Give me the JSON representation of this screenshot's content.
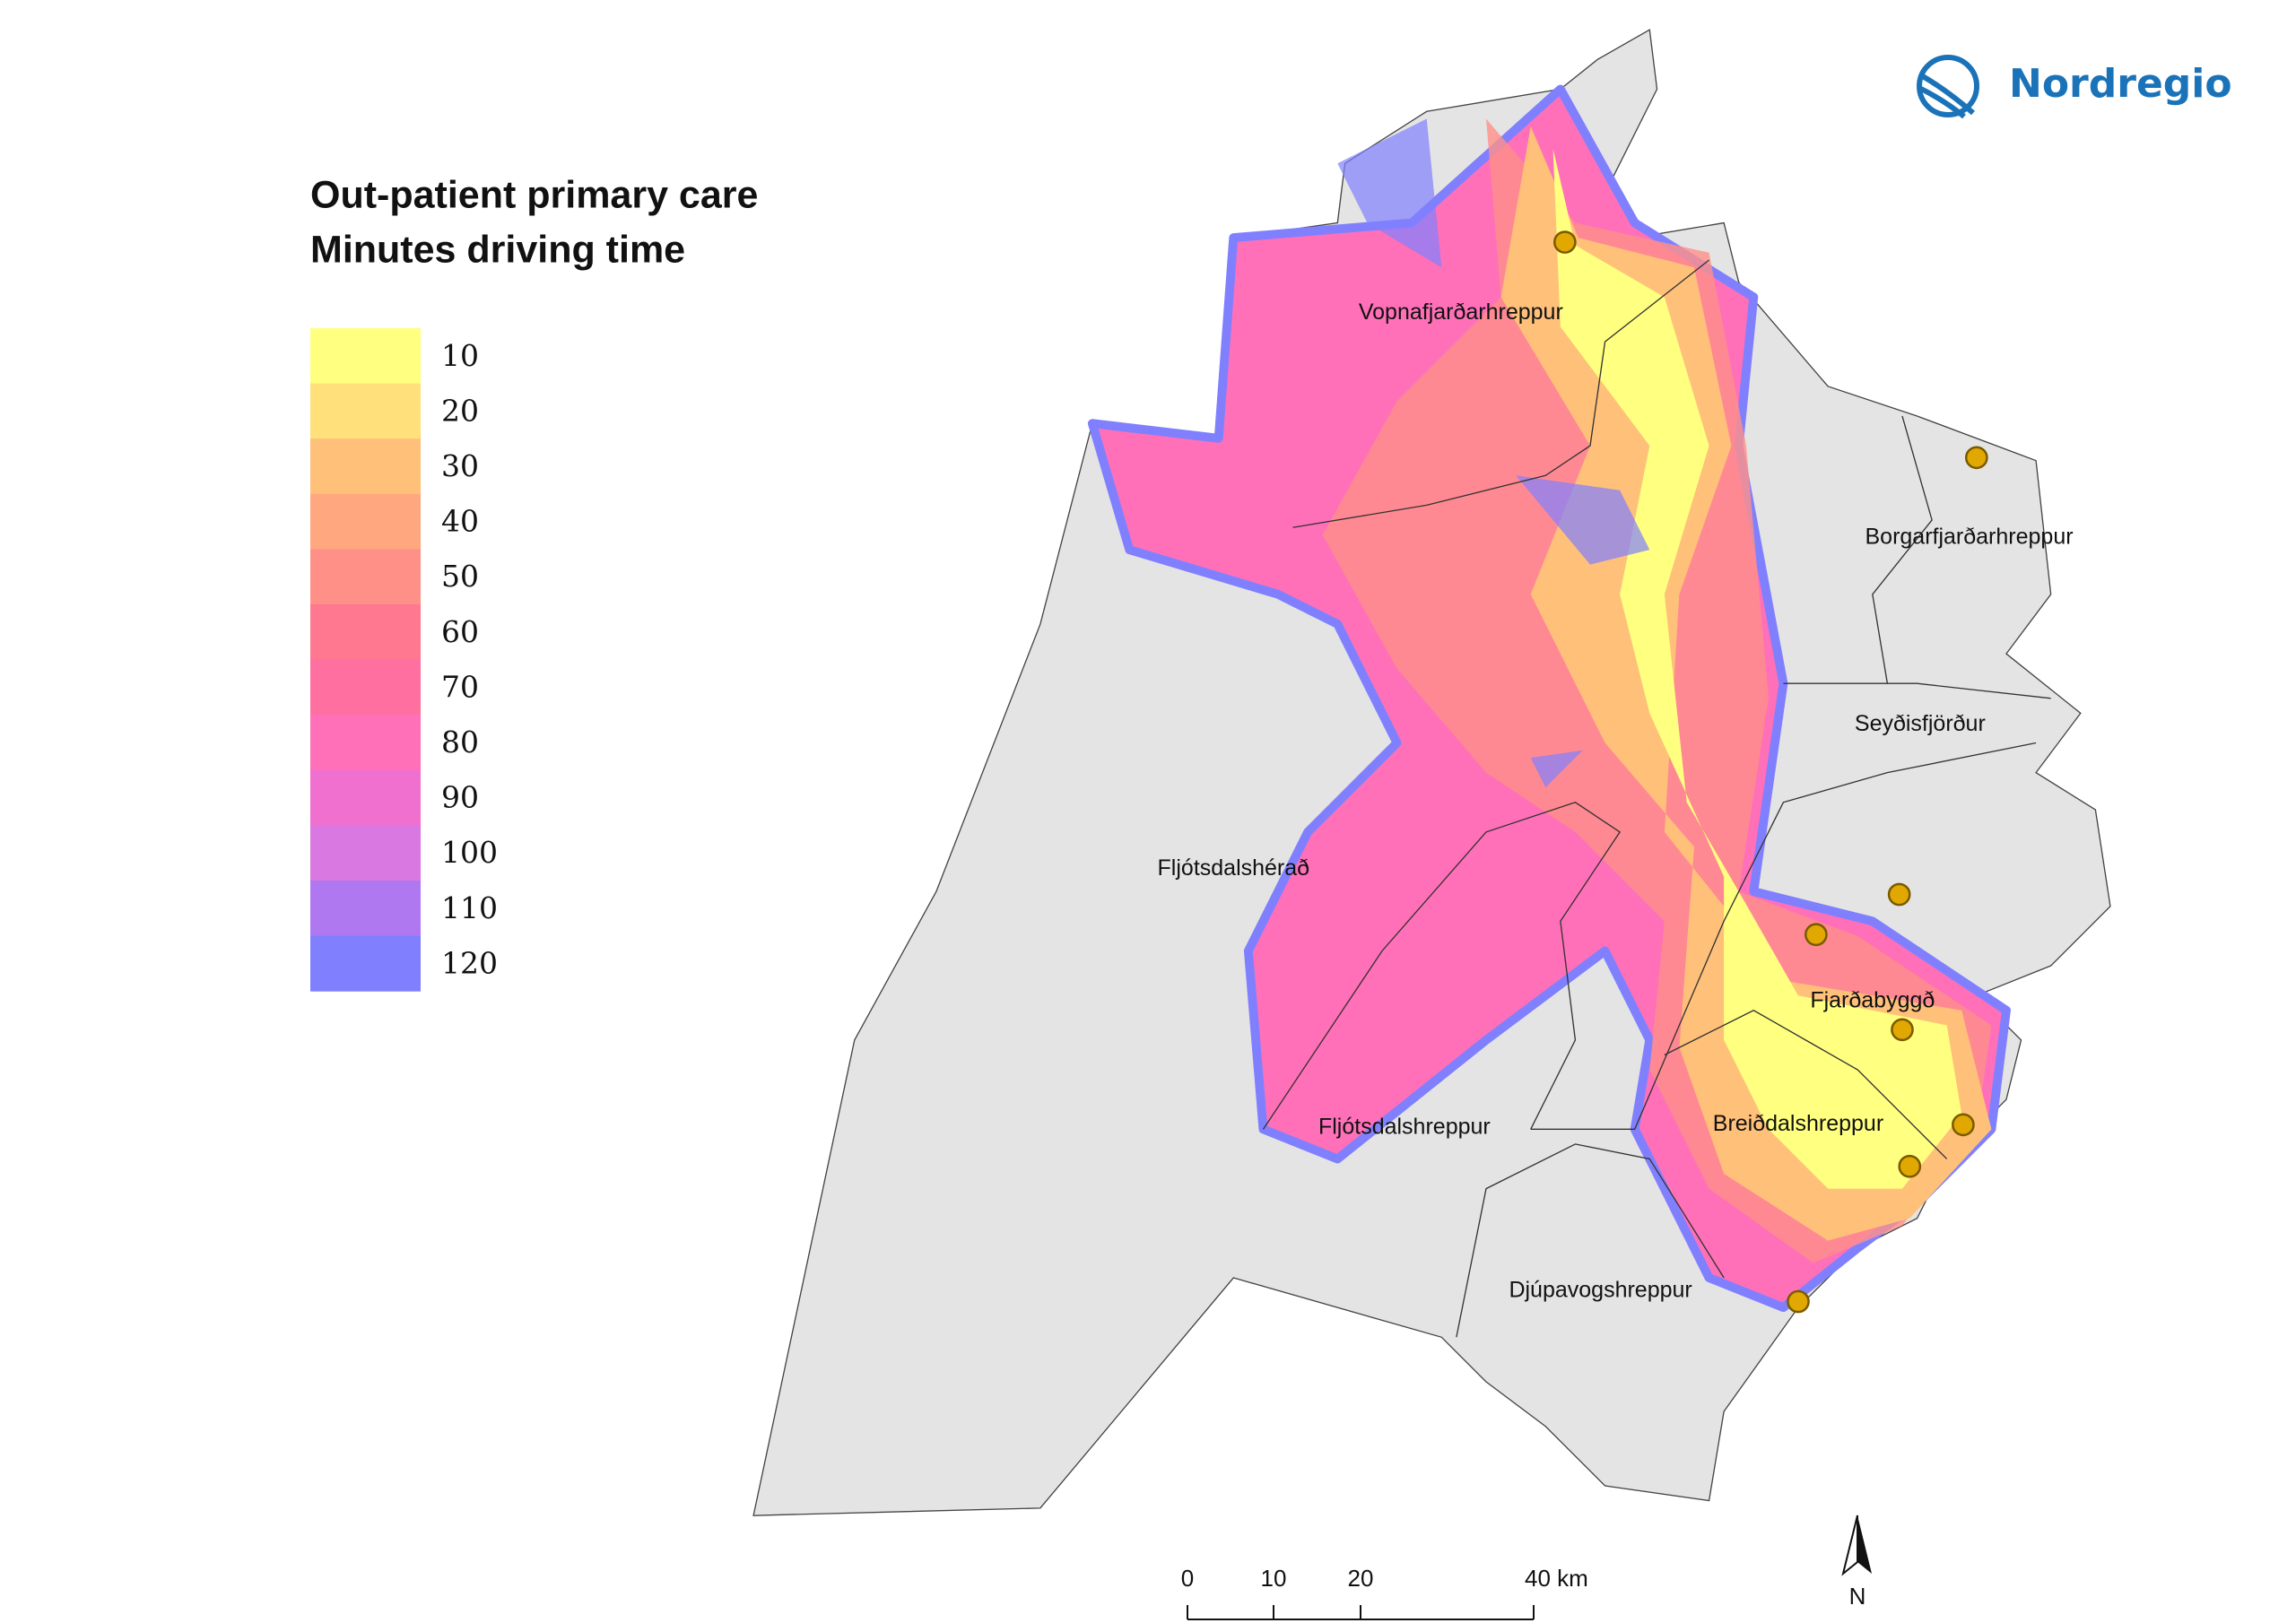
{
  "title": [
    "Out-patient primary care",
    "Minutes driving time"
  ],
  "legend": {
    "items": [
      {
        "label": 10,
        "color": "#ffff80"
      },
      {
        "label": 20,
        "color": "#ffe07a"
      },
      {
        "label": 30,
        "color": "#ffc07a"
      },
      {
        "label": 40,
        "color": "#ffa880"
      },
      {
        "label": 50,
        "color": "#ff9088"
      },
      {
        "label": 60,
        "color": "#ff7890"
      },
      {
        "label": 70,
        "color": "#ff70a0"
      },
      {
        "label": 80,
        "color": "#ff70b8"
      },
      {
        "label": 90,
        "color": "#f070d0"
      },
      {
        "label": 100,
        "color": "#d878e0"
      },
      {
        "label": 110,
        "color": "#b078f0"
      },
      {
        "label": 120,
        "color": "#8080ff"
      }
    ]
  },
  "places": [
    "Vopnafjarðarhreppur",
    "Borgarfjarðarhreppur",
    "Seyðisfjörður",
    "Fljótsdalshérað",
    "Fjarðabyggð",
    "Breiðdalshreppur",
    "Fljótsdalshreppur",
    "Djúpavogshreppur"
  ],
  "scale_bar": {
    "labels": [
      "0",
      "10",
      "20",
      "40 km"
    ]
  },
  "north": "N",
  "logo": "Nordregio"
}
